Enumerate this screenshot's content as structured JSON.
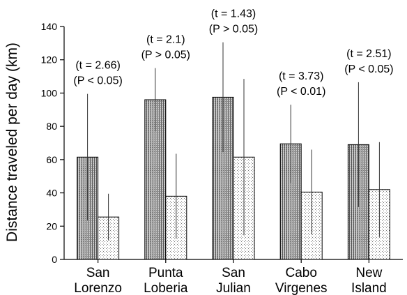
{
  "chart_data": {
    "type": "bar",
    "ylabel": "Distance traveled per day (km)",
    "xlabel": "",
    "ylim": [
      0,
      140
    ],
    "yticks": [
      "0",
      "20",
      "40",
      "60",
      "80",
      "100",
      "120",
      "140"
    ],
    "grid": false,
    "categories": [
      {
        "line1": "San",
        "line2": "Lorenzo"
      },
      {
        "line1": "Punta",
        "line2": "Loberia"
      },
      {
        "line1": "San",
        "line2": "Julian"
      },
      {
        "line1": "Cabo",
        "line2": "Virgenes"
      },
      {
        "line1": "New",
        "line2": "Island"
      }
    ],
    "series": [
      {
        "pattern": "dense-vertical",
        "fill": "#bdbdbd",
        "values": [
          61.5,
          96,
          97.5,
          69.5,
          69
        ],
        "error": [
          38,
          19,
          33,
          23.5,
          37.5
        ]
      },
      {
        "pattern": "dots",
        "fill": "#f3f3f3",
        "values": [
          25.5,
          38,
          61.5,
          40.5,
          42
        ],
        "error": [
          14,
          25.5,
          47,
          25.5,
          28.5
        ]
      }
    ],
    "annotations": [
      {
        "t": "(t = 2.66)",
        "p": "(P < 0.05)"
      },
      {
        "t": "(t = 2.1)",
        "p": "(P > 0.05)"
      },
      {
        "t": "(t = 1.43)",
        "p": "(P > 0.05)"
      },
      {
        "t": "(t = 3.73)",
        "p": "(P < 0.01)"
      },
      {
        "t": "(t = 2.51)",
        "p": "(P < 0.05)"
      }
    ]
  }
}
